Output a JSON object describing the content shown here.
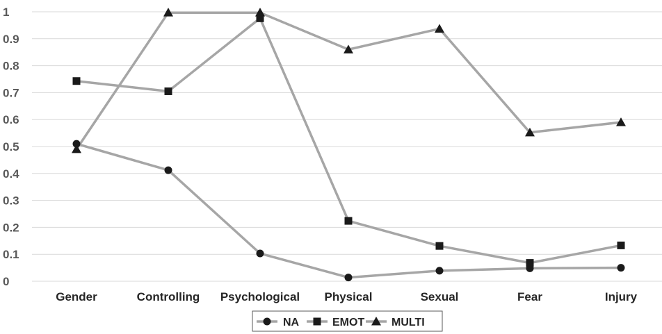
{
  "chart_data": {
    "type": "line",
    "categories": [
      "Gender",
      "Controlling",
      "Psychological",
      "Physical",
      "Sexual",
      "Fear",
      "Injury"
    ],
    "series": [
      {
        "name": "NA",
        "marker": "circle",
        "values": [
          0.51,
          0.412,
          0.103,
          0.014,
          0.039,
          0.048,
          0.05
        ]
      },
      {
        "name": "EMOT",
        "marker": "square",
        "values": [
          0.743,
          0.705,
          0.976,
          0.224,
          0.131,
          0.068,
          0.133
        ]
      },
      {
        "name": "MULTI",
        "marker": "triangle",
        "values": [
          0.49,
          0.997,
          0.997,
          0.86,
          0.937,
          0.552,
          0.59
        ]
      }
    ],
    "ylim": [
      0,
      1
    ],
    "yticks": [
      "0",
      "0.1",
      "0.2",
      "0.3",
      "0.4",
      "0.5",
      "0.6",
      "0.7",
      "0.8",
      "0.9",
      "1"
    ],
    "title": "",
    "xlabel": "",
    "ylabel": "",
    "grid": true,
    "legend": "bottom",
    "colors": {
      "line": "#A6A6A6",
      "marker": "#1A1A1A",
      "grid": "#D9D9D9",
      "tick_text": "#595959",
      "label_text": "#262626"
    }
  }
}
